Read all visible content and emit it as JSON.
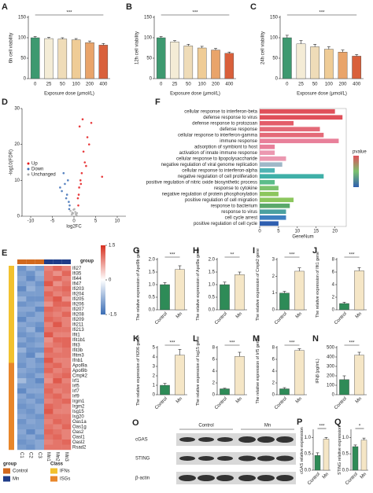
{
  "chart_data": [
    {
      "panel": "A",
      "type": "bar",
      "y_label": "6h cell viability",
      "x_label": "Exposure dose (μmol/L)",
      "categories": [
        "0",
        "25",
        "50",
        "100",
        "200",
        "400"
      ],
      "values": [
        100,
        98,
        97,
        95,
        88,
        82
      ],
      "errors": [
        3,
        3,
        3,
        3,
        4,
        4
      ],
      "colors": [
        "#3d9970",
        "#f4ecd6",
        "#efdcb8",
        "#efcc96",
        "#e9a46a",
        "#d9603b"
      ],
      "ylim": [
        0,
        150
      ],
      "yticks": [
        0,
        50,
        100,
        150
      ],
      "significance": "***"
    },
    {
      "panel": "B",
      "type": "bar",
      "y_label": "12h cell viability",
      "x_label": "Exposure dose (μmol/L)",
      "categories": [
        "0",
        "25",
        "50",
        "100",
        "200",
        "400"
      ],
      "values": [
        100,
        90,
        80,
        75,
        70,
        62
      ],
      "errors": [
        3,
        3,
        4,
        4,
        4,
        3
      ],
      "colors": [
        "#3d9970",
        "#f4ecd6",
        "#efdcb8",
        "#efcc96",
        "#e9a46a",
        "#d9603b"
      ],
      "ylim": [
        0,
        150
      ],
      "yticks": [
        0,
        50,
        100,
        150
      ],
      "significance": "***"
    },
    {
      "panel": "C",
      "type": "bar",
      "y_label": "24h cell viability",
      "x_label": "Exposure dose (μmol/L)",
      "categories": [
        "0",
        "25",
        "50",
        "100",
        "200",
        "400"
      ],
      "values": [
        100,
        85,
        78,
        72,
        65,
        55
      ],
      "errors": [
        6,
        8,
        6,
        6,
        5,
        4
      ],
      "colors": [
        "#3d9970",
        "#f4ecd6",
        "#efdcb8",
        "#efcc96",
        "#e9a46a",
        "#d9603b"
      ],
      "ylim": [
        0,
        150
      ],
      "yticks": [
        0,
        50,
        100,
        150
      ],
      "significance": "***"
    },
    {
      "panel": "D",
      "type": "scatter",
      "x_label": "log2FC",
      "y_label": "-log10(FDR)",
      "xlim": [
        -12,
        12
      ],
      "xticks": [
        -10,
        -5,
        0,
        5,
        10
      ],
      "ylim": [
        0,
        30
      ],
      "yticks": [
        0,
        10,
        20,
        30
      ],
      "series": [
        {
          "name": "Up",
          "color": "#e41a1c",
          "x": [
            1.2,
            1.8,
            2.5,
            3.1,
            0.9,
            1.5,
            2.2,
            4.0,
            1.1,
            2.8,
            1.6,
            3.5,
            1.3,
            2.0,
            6.5,
            1.0
          ],
          "values": [
            8,
            12,
            15,
            22,
            5,
            10,
            18,
            26,
            6,
            14,
            9,
            20,
            25,
            27,
            11,
            3
          ]
        },
        {
          "name": "Down",
          "color": "#3b6db5",
          "x": [
            -1.2,
            -1.6,
            -2.1,
            -1.0,
            -2.8,
            -1.4,
            -1.8,
            -3.2,
            -1.1,
            -2.4
          ],
          "values": [
            4,
            6,
            9,
            3,
            7,
            10,
            5,
            8,
            2,
            12
          ]
        },
        {
          "name": "Unchanged",
          "color": "#aaaaaa",
          "x": [
            -0.5,
            0.3,
            -0.2,
            0.6,
            -0.8,
            0.1,
            0.4,
            -0.4,
            0.7,
            -0.1
          ],
          "values": [
            0.5,
            1.2,
            0.8,
            0.3,
            1.5,
            2.0,
            0.6,
            1.0,
            0.9,
            1.8
          ]
        }
      ]
    },
    {
      "panel": "F",
      "type": "barh",
      "x_label": "GeneNum",
      "legend_title": "pvalue",
      "xlim": [
        0,
        23
      ],
      "xticks": [
        0,
        5,
        10,
        15,
        20
      ],
      "categories": [
        "cellular response to interferon-beta",
        "defense response to virus",
        "defense response to protozoan",
        "defense response",
        "cellular response to interferon-gamma",
        "immune response",
        "adsorption of symbiont to host",
        "activation of innate immune response",
        "cellular response to lipopolysaccharide",
        "negative regulation of viral genome replication",
        "cellular response to interferon-alpha",
        "negative regulation of cell proliferation",
        "positive regulation of nitric oxide biosynthetic process",
        "response to cytokine",
        "negative regulation of protein phosphorylation",
        "positive regulation of cell migration",
        "response to bacterium",
        "response to virus",
        "cell cycle arrest",
        "positive regulation of cell cycle"
      ],
      "values": [
        20,
        22,
        9,
        16,
        17,
        21,
        4,
        4,
        7,
        6,
        4,
        17,
        4,
        5,
        5,
        9,
        8,
        7,
        7,
        5
      ],
      "colors": [
        "#e0505a",
        "#e0505a",
        "#e35d6a",
        "#e46a78",
        "#e46a78",
        "#e8809a",
        "#e8809a",
        "#eb98b0",
        "#eb98b0",
        "#9fb8c8",
        "#4fb3b3",
        "#3fb0a8",
        "#5bbd8a",
        "#7cc26e",
        "#8cc65e",
        "#8cc65e",
        "#5aa86a",
        "#4aa0a0",
        "#3d7fc0",
        "#2f5fb0"
      ],
      "label_colors": [
        "#d62728",
        "#333333",
        "#333333",
        "#333333",
        "#d62728",
        "#333333",
        "#333333",
        "#333333",
        "#333333",
        "#333333",
        "#d62728",
        "#333333",
        "#333333",
        "#333333",
        "#333333",
        "#333333",
        "#333333",
        "#333333",
        "#333333",
        "#333333"
      ]
    },
    {
      "panel": "E",
      "type": "heatmap",
      "group_title": "group",
      "class_title": "Class",
      "zlim": [
        -1.5,
        1.5
      ],
      "zticks": [
        1.5,
        0,
        -1.5
      ],
      "columns": [
        "C1",
        "C2",
        "C3",
        "Mn1",
        "Mn2",
        "Mn3"
      ],
      "column_group": [
        "Control",
        "Control",
        "Control",
        "Mn",
        "Mn",
        "Mn"
      ],
      "groups": [
        {
          "name": "Control",
          "color": "#d2691e"
        },
        {
          "name": "Mn",
          "color": "#1f3c88"
        }
      ],
      "classes": [
        {
          "name": "IFNs",
          "color": "#f2c12e"
        },
        {
          "name": "ISGs",
          "color": "#e8862a"
        }
      ],
      "rows": [
        "Ifi27",
        "Ifi35",
        "Ifi44",
        "Ifi47",
        "Ifi203",
        "Ifi204",
        "Ifi205",
        "Ifi206",
        "Ifi207",
        "Ifi208",
        "Ifi209",
        "Ifi211",
        "Ifi213",
        "Ifit1",
        "Ifit1b1",
        "Ifit3",
        "Ifit3b",
        "Ifitm3",
        "Ifnb1",
        "Apol9a",
        "Apol9b",
        "Cmpk2",
        "Irf1",
        "Irf5",
        "Irf7",
        "Irf9",
        "Irgm1",
        "Irgm2",
        "Isg15",
        "Isg20",
        "Oas1a",
        "Oas1g",
        "Oas2",
        "Oasl1",
        "Oasl2",
        "Rsad2"
      ],
      "row_class": [
        "IFNs",
        "IFNs",
        "IFNs",
        "IFNs",
        "IFNs",
        "IFNs",
        "IFNs",
        "IFNs",
        "IFNs",
        "IFNs",
        "IFNs",
        "IFNs",
        "IFNs",
        "IFNs",
        "IFNs",
        "IFNs",
        "IFNs",
        "IFNs",
        "IFNs",
        "ISGs",
        "ISGs",
        "ISGs",
        "ISGs",
        "ISGs",
        "ISGs",
        "ISGs",
        "ISGs",
        "ISGs",
        "ISGs",
        "ISGs",
        "ISGs",
        "ISGs",
        "ISGs",
        "ISGs",
        "ISGs",
        "ISGs"
      ],
      "values": [
        [
          -1.1,
          -0.8,
          -1.0,
          0.9,
          1.1,
          0.9
        ],
        [
          -1.0,
          -1.1,
          -0.8,
          1.0,
          0.8,
          1.1
        ],
        [
          -0.9,
          -1.2,
          -0.9,
          1.0,
          1.1,
          0.9
        ],
        [
          -1.0,
          -0.9,
          -1.1,
          1.2,
          0.8,
          1.0
        ],
        [
          -1.2,
          -0.8,
          -1.0,
          0.9,
          1.0,
          1.1
        ],
        [
          -1.0,
          -1.0,
          -1.0,
          1.1,
          0.9,
          1.0
        ],
        [
          -0.8,
          -1.1,
          -1.1,
          1.0,
          1.2,
          0.8
        ],
        [
          -1.1,
          -1.0,
          -0.9,
          0.8,
          1.1,
          1.1
        ],
        [
          -0.9,
          -0.9,
          -1.2,
          1.1,
          1.0,
          0.9
        ],
        [
          -1.0,
          -1.1,
          -0.9,
          1.0,
          0.9,
          1.1
        ],
        [
          -1.2,
          -0.9,
          -0.9,
          1.1,
          1.0,
          0.9
        ],
        [
          -0.9,
          -1.0,
          -1.1,
          0.9,
          1.2,
          0.9
        ],
        [
          -1.0,
          -0.8,
          -1.2,
          1.0,
          1.0,
          1.0
        ],
        [
          -1.1,
          -1.0,
          -0.9,
          1.2,
          0.9,
          0.9
        ],
        [
          -0.9,
          -1.1,
          -1.0,
          0.8,
          1.1,
          1.1
        ],
        [
          -1.1,
          -1.0,
          -0.9,
          0.9,
          1.0,
          1.1
        ],
        [
          -0.8,
          -1.1,
          -1.1,
          1.1,
          0.9,
          1.0
        ],
        [
          -1.0,
          -1.2,
          -0.8,
          1.0,
          1.0,
          1.0
        ],
        [
          -1.0,
          -0.9,
          -1.1,
          1.2,
          0.9,
          0.9
        ],
        [
          -1.1,
          -0.9,
          -1.0,
          1.0,
          1.1,
          0.9
        ],
        [
          -0.9,
          -1.0,
          -1.1,
          1.1,
          0.9,
          1.0
        ],
        [
          -1.0,
          -1.1,
          -0.9,
          0.9,
          1.0,
          1.1
        ],
        [
          -0.7,
          -1.0,
          -1.2,
          0.8,
          1.2,
          0.9
        ],
        [
          -1.0,
          -1.0,
          -1.0,
          1.0,
          1.0,
          1.0
        ],
        [
          -1.2,
          -0.9,
          -0.9,
          1.1,
          0.9,
          1.0
        ],
        [
          -0.9,
          -1.1,
          -1.0,
          1.0,
          1.1,
          0.9
        ],
        [
          -1.0,
          -0.9,
          -1.1,
          0.9,
          1.0,
          1.1
        ],
        [
          -1.1,
          -1.0,
          -0.9,
          1.1,
          1.0,
          0.9
        ],
        [
          -1.0,
          -1.1,
          -0.9,
          1.2,
          0.9,
          0.9
        ],
        [
          -0.9,
          -1.0,
          -1.1,
          1.0,
          1.0,
          1.0
        ],
        [
          -1.1,
          -0.9,
          -1.0,
          0.9,
          1.1,
          1.0
        ],
        [
          -1.0,
          -1.0,
          -1.0,
          1.0,
          0.9,
          1.1
        ],
        [
          -0.9,
          -1.2,
          -0.9,
          1.1,
          1.0,
          0.9
        ],
        [
          -1.0,
          -0.9,
          -1.1,
          1.0,
          1.1,
          0.9
        ],
        [
          -1.1,
          -1.0,
          -0.9,
          0.9,
          1.0,
          1.1
        ],
        [
          -1.0,
          -1.1,
          -0.9,
          1.0,
          1.0,
          1.0
        ]
      ]
    },
    {
      "panel": "G",
      "type": "bar",
      "y_label": "The relative expression of Apol9b gene",
      "categories": [
        "Control",
        "Mn"
      ],
      "values": [
        1.0,
        1.6
      ],
      "errors": [
        0.08,
        0.15
      ],
      "colors": [
        "#2e8b57",
        "#f5e6c6"
      ],
      "ylim": [
        0,
        2
      ],
      "yticks": [
        {
          "value": 0,
          "label": "0.0"
        },
        0.5,
        {
          "value": 1,
          "label": "1.0"
        },
        1.5,
        {
          "value": 2,
          "label": "2.0"
        }
      ],
      "significance": "***"
    },
    {
      "panel": "H",
      "type": "bar",
      "y_label": "The relative expression of Apol9a gene",
      "categories": [
        "Control",
        "Mn"
      ],
      "values": [
        1.0,
        1.4
      ],
      "errors": [
        0.1,
        0.1
      ],
      "colors": [
        "#2e8b57",
        "#f5e6c6"
      ],
      "ylim": [
        0,
        2
      ],
      "yticks": [
        {
          "value": 0,
          "label": "0.0"
        },
        0.5,
        {
          "value": 1,
          "label": "1.0"
        },
        1.5,
        {
          "value": 2,
          "label": "2.0"
        }
      ],
      "significance": "**"
    },
    {
      "panel": "I",
      "type": "bar",
      "y_label": "The relative expression of Cmpk2 gene",
      "categories": [
        "Control",
        "Mn"
      ],
      "values": [
        1.0,
        2.3
      ],
      "errors": [
        0.1,
        0.2
      ],
      "colors": [
        "#2e8b57",
        "#f5e6c6"
      ],
      "ylim": [
        0,
        3
      ],
      "yticks": [
        0,
        1,
        2,
        3
      ],
      "significance": "***"
    },
    {
      "panel": "J",
      "type": "bar",
      "y_label": "The relative expression of Ifit1 gene",
      "categories": [
        "Control",
        "Mn"
      ],
      "values": [
        1.0,
        6.2
      ],
      "errors": [
        0.2,
        0.5
      ],
      "colors": [
        "#2e8b57",
        "#f5e6c6"
      ],
      "ylim": [
        0,
        8
      ],
      "yticks": [
        0,
        2,
        4,
        6,
        8
      ],
      "significance": "***"
    },
    {
      "panel": "K",
      "type": "bar",
      "y_label": "The relative expression of Ifi206 gene",
      "categories": [
        "Control",
        "Mn"
      ],
      "values": [
        1.0,
        4.2
      ],
      "errors": [
        0.2,
        0.6
      ],
      "colors": [
        "#2e8b57",
        "#f5e6c6"
      ],
      "ylim": [
        0,
        5
      ],
      "yticks": [
        0,
        1,
        2,
        3,
        4,
        5
      ],
      "significance": "***"
    },
    {
      "panel": "L",
      "type": "bar",
      "y_label": "The relative expression of Isg15 gene",
      "categories": [
        "Control",
        "Mn"
      ],
      "values": [
        1.0,
        6.5
      ],
      "errors": [
        0.1,
        0.7
      ],
      "colors": [
        "#2e8b57",
        "#f5e6c6"
      ],
      "ylim": [
        0,
        8
      ],
      "yticks": [
        0,
        2,
        4,
        6,
        8
      ],
      "significance": "***"
    },
    {
      "panel": "M",
      "type": "bar",
      "y_label": "The relative expression of Irf5 gene",
      "categories": [
        "Control",
        "Mn"
      ],
      "values": [
        1.0,
        7.5
      ],
      "errors": [
        0.2,
        0.3
      ],
      "colors": [
        "#2e8b57",
        "#f5e6c6"
      ],
      "ylim": [
        0,
        8
      ],
      "yticks": [
        0,
        2,
        4,
        6,
        8
      ],
      "significance": "***"
    },
    {
      "panel": "N",
      "type": "bar",
      "y_label": "IFNβ (pg/mL)",
      "categories": [
        "Control",
        "Mn"
      ],
      "values": [
        160,
        420
      ],
      "errors": [
        40,
        30
      ],
      "colors": [
        "#2e8b57",
        "#f5e6c6"
      ],
      "ylim": [
        0,
        500
      ],
      "yticks": [
        0,
        100,
        200,
        300,
        400,
        500
      ],
      "significance": "***"
    },
    {
      "panel": "P",
      "type": "bar",
      "y_label": "cGAS relative expression",
      "categories": [
        "Control",
        "Mn"
      ],
      "values": [
        0.45,
        0.95
      ],
      "errors": [
        0.08,
        0.05
      ],
      "colors": [
        "#2e8b57",
        "#f5e6c6"
      ],
      "ylim": [
        0,
        1.2
      ],
      "yticks": [
        {
          "value": 0,
          "label": "0.0"
        },
        0.5,
        {
          "value": 1,
          "label": "1.0"
        }
      ],
      "significance": "***"
    },
    {
      "panel": "Q",
      "type": "bar",
      "y_label": "STING relative expression",
      "categories": [
        "Control",
        "Mn"
      ],
      "values": [
        0.72,
        0.92
      ],
      "errors": [
        0.05,
        0.06
      ],
      "colors": [
        "#2e8b57",
        "#f5e6c6"
      ],
      "ylim": [
        0,
        1.2
      ],
      "yticks": [
        {
          "value": 0,
          "label": "0.0"
        },
        0.5,
        {
          "value": 1,
          "label": "1.0"
        }
      ],
      "significance": "*"
    }
  ],
  "blot": {
    "panel": "O",
    "groups": [
      "Control",
      "Mn"
    ],
    "rows": [
      "cGAS",
      "STING",
      "β-actin"
    ]
  }
}
